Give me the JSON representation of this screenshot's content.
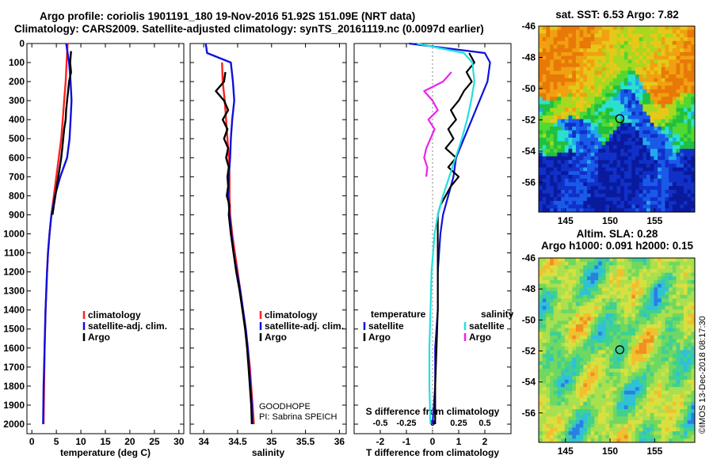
{
  "titles": {
    "line1": "Argo profile: coriolis 1901191_180 19-Nov-2016 51.92S 151.09E (NRT data)",
    "line2": "Climatology: CARS2009. Satellite-adjusted climatology: synTS_20161119.nc (0.0097d earlier)"
  },
  "credit": "©IMOS 13-Dec-2018 08:17:30",
  "colors": {
    "climatology": "#ff2020",
    "satellite": "#1010dd",
    "argo": "#000000",
    "satellite_s": "#22e0e0",
    "argo_s": "#ee22ee"
  },
  "chart_data": [
    {
      "type": "line",
      "xlabel": "temperature (deg C)",
      "ylim": [
        2050,
        0
      ],
      "xlim": [
        -1,
        31
      ],
      "x_ticks": [
        "0",
        "5",
        "10",
        "15",
        "20",
        "25",
        "30"
      ],
      "y_ticks": [
        "0",
        "100",
        "200",
        "300",
        "400",
        "500",
        "600",
        "700",
        "800",
        "900",
        "1000",
        "1100",
        "1200",
        "1300",
        "1400",
        "1500",
        "1600",
        "1700",
        "1800",
        "1900",
        "2000"
      ],
      "legend": [
        "climatology",
        "satellite-adj. clim.",
        "Argo"
      ],
      "series": [
        {
          "name": "climatology",
          "depth": [
            0,
            50,
            100,
            200,
            300,
            400,
            500,
            600,
            700,
            800,
            900,
            1000,
            1100,
            1200,
            1400,
            1600,
            1800,
            2000
          ],
          "values": [
            7.3,
            7.2,
            7.1,
            6.9,
            6.6,
            6.3,
            6.0,
            5.5,
            5.0,
            4.5,
            4.0,
            3.6,
            3.3,
            3.1,
            2.8,
            2.6,
            2.5,
            2.4
          ]
        },
        {
          "name": "satellite-adj. clim.",
          "depth": [
            0,
            50,
            100,
            200,
            300,
            400,
            500,
            600,
            700,
            800,
            900,
            1000,
            1100,
            1200,
            1400,
            1600,
            1800,
            2000
          ],
          "values": [
            7.0,
            7.3,
            7.6,
            7.9,
            8.1,
            7.9,
            7.7,
            7.2,
            5.8,
            4.7,
            4.0,
            3.6,
            3.3,
            3.1,
            2.8,
            2.6,
            2.4,
            2.3
          ]
        },
        {
          "name": "Argo",
          "depth": [
            40,
            100,
            150,
            200,
            250,
            300,
            350,
            400,
            450,
            500,
            550,
            600,
            650,
            700,
            750,
            800,
            850,
            900
          ],
          "values": [
            8.0,
            7.8,
            8.0,
            7.6,
            7.4,
            7.2,
            7.0,
            6.9,
            6.6,
            6.4,
            6.2,
            6.0,
            5.7,
            5.4,
            5.1,
            4.8,
            4.5,
            4.2
          ]
        }
      ]
    },
    {
      "type": "line",
      "xlabel": "salinity",
      "ylim": [
        2050,
        0
      ],
      "xlim": [
        33.8,
        36.1
      ],
      "x_ticks": [
        "34",
        "34.5",
        "35",
        "35.5",
        "36"
      ],
      "legend": [
        "climatology",
        "satellite-adj. clim.",
        "Argo"
      ],
      "annotations": [
        "GOODHOPE",
        "PI: Sabrina SPEICH"
      ],
      "series": [
        {
          "name": "climatology",
          "depth": [
            100,
            200,
            300,
            400,
            500,
            600,
            700,
            800,
            900,
            1000,
            1100,
            1200,
            1300,
            1400,
            1500,
            1600,
            1700,
            1800,
            1900,
            2000
          ],
          "values": [
            34.27,
            34.28,
            34.31,
            34.33,
            34.35,
            34.37,
            34.38,
            34.38,
            34.39,
            34.42,
            34.46,
            34.5,
            34.54,
            34.58,
            34.62,
            34.65,
            34.68,
            34.7,
            34.72,
            34.74
          ]
        },
        {
          "name": "satellite-adj. clim.",
          "depth": [
            0,
            50,
            100,
            200,
            300,
            400,
            500,
            600,
            700,
            800,
            900,
            1000,
            1100,
            1200,
            1300,
            1400,
            1500,
            1600,
            1700,
            1800,
            1900,
            2000
          ],
          "values": [
            34.03,
            34.05,
            34.4,
            34.43,
            34.45,
            34.42,
            34.4,
            34.39,
            34.37,
            34.36,
            34.38,
            34.41,
            34.44,
            34.49,
            34.54,
            34.58,
            34.62,
            34.65,
            34.67,
            34.69,
            34.71,
            34.72
          ]
        },
        {
          "name": "Argo",
          "depth": [
            150,
            200,
            250,
            300,
            350,
            400,
            450,
            500,
            550,
            600,
            650,
            700,
            750,
            800,
            850,
            900,
            1000,
            1100,
            1200,
            1300,
            1400,
            1500,
            1600,
            1700,
            1800,
            1900,
            2000
          ],
          "values": [
            34.32,
            34.3,
            34.18,
            34.3,
            34.36,
            34.28,
            34.35,
            34.3,
            34.36,
            34.33,
            34.37,
            34.35,
            34.36,
            34.34,
            34.38,
            34.37,
            34.4,
            34.44,
            34.48,
            34.53,
            34.57,
            34.61,
            34.64,
            34.66,
            34.68,
            34.7,
            34.71
          ]
        }
      ]
    },
    {
      "type": "line",
      "xlabel": "T difference from climatology",
      "xlim": [
        -3,
        3
      ],
      "x_ticks": [
        "-2",
        "-1",
        "0",
        "1",
        "2"
      ],
      "ylim": [
        2050,
        0
      ],
      "secondary_axis": {
        "label": "S difference from climatology",
        "ticks": [
          "-0.5",
          "-0.25",
          "0",
          "0.25",
          "0.5"
        ]
      },
      "legend_left": [
        "temperature",
        "satellite",
        "Argo"
      ],
      "legend_right": [
        "salinity",
        "satellite",
        "Argo"
      ],
      "series": [
        {
          "name": "temperature satellite",
          "depth": [
            0,
            50,
            100,
            200,
            300,
            400,
            500,
            600,
            700,
            800,
            900,
            1000,
            1200,
            1400,
            1600,
            1800,
            2000
          ],
          "values": [
            -0.9,
            2.0,
            2.2,
            2.1,
            1.8,
            1.5,
            1.2,
            0.9,
            0.8,
            0.6,
            0.4,
            0.3,
            0.2,
            0.2,
            0.1,
            0.1,
            0.0
          ]
        },
        {
          "name": "temperature Argo",
          "depth": [
            50,
            100,
            150,
            200,
            250,
            300,
            350,
            400,
            450,
            500,
            550,
            600,
            650,
            700,
            750,
            800,
            850,
            900,
            1000,
            1200,
            1400,
            1600,
            1800,
            2000
          ],
          "values": [
            1.4,
            1.6,
            1.3,
            1.5,
            1.2,
            1.0,
            0.7,
            0.9,
            0.6,
            0.8,
            0.5,
            0.9,
            0.6,
            1.0,
            0.7,
            0.5,
            0.3,
            0.2,
            0.2,
            0.2,
            0.2,
            0.15,
            0.1,
            0.1
          ]
        },
        {
          "name": "salinity satellite",
          "depth": [
            0,
            50,
            100,
            200,
            300,
            400,
            500,
            600,
            700,
            800,
            900,
            1000,
            1200,
            1400,
            1600,
            1800,
            2000
          ],
          "values": [
            -0.15,
            0.3,
            0.38,
            0.4,
            0.37,
            0.33,
            0.28,
            0.22,
            0.16,
            0.1,
            0.05,
            0.02,
            -0.01,
            -0.02,
            -0.03,
            -0.03,
            -0.02
          ]
        },
        {
          "name": "salinity Argo",
          "depth": [
            150,
            200,
            250,
            300,
            350,
            400,
            450,
            500,
            550,
            600,
            650,
            700
          ],
          "values": [
            0.18,
            0.1,
            -0.08,
            0.0,
            0.05,
            -0.04,
            0.02,
            -0.02,
            -0.06,
            -0.08,
            -0.05,
            -0.06
          ]
        }
      ]
    },
    {
      "type": "heatmap",
      "title": "sat. SST: 6.53 Argo: 7.82",
      "x_ticks": [
        "145",
        "150",
        "155"
      ],
      "y_ticks": [
        "-46",
        "-48",
        "-50",
        "-52",
        "-54",
        "-56"
      ],
      "marker": {
        "lon": 151.09,
        "lat": -51.92
      },
      "xlim": [
        142,
        159.5
      ],
      "ylim": [
        -57.9,
        -46
      ]
    },
    {
      "type": "heatmap",
      "title": "Altim. SLA: 0.28",
      "subtitle": "Argo h1000: 0.091 h2000: 0.15",
      "x_ticks": [
        "145",
        "150",
        "155"
      ],
      "y_ticks": [
        "-46",
        "-48",
        "-50",
        "-52",
        "-54",
        "-56"
      ],
      "marker": {
        "lon": 151.09,
        "lat": -51.92
      },
      "xlim": [
        142,
        159.5
      ],
      "ylim": [
        -57.9,
        -46
      ]
    }
  ]
}
